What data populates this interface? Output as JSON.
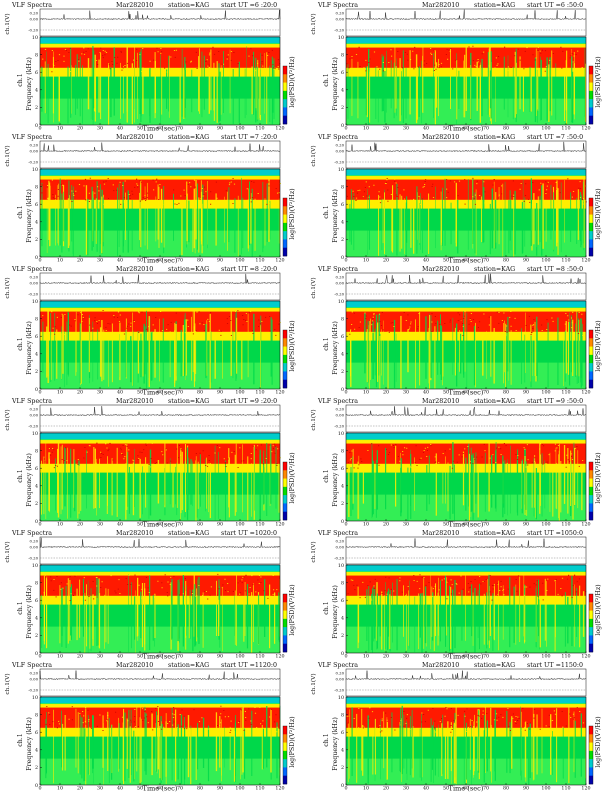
{
  "page": {
    "background": "#ffffff"
  },
  "chart_data": [
    {
      "type": "heatmap",
      "panel": "r1c1",
      "header": {
        "left": "VLF Spectra",
        "date": "Mar282010",
        "station": "station=KAG",
        "start": "start  UT =6 :20:0"
      }
    },
    {
      "type": "heatmap",
      "panel": "r1c2",
      "header": {
        "left": "VLF Spectra",
        "date": "Mar282010",
        "station": "station=KAG",
        "start": "start  UT =6 :50:0"
      }
    },
    {
      "type": "heatmap",
      "panel": "r2c1",
      "header": {
        "left": "VLF Spectra",
        "date": "Mar282010",
        "station": "station=KAG",
        "start": "start  UT =7 :20:0"
      }
    },
    {
      "type": "heatmap",
      "panel": "r2c2",
      "header": {
        "left": "VLF Spectra",
        "date": "Mar282010",
        "station": "station=KAG",
        "start": "start  UT =7 :50:0"
      }
    },
    {
      "type": "heatmap",
      "panel": "r3c1",
      "header": {
        "left": "VLF Spectra",
        "date": "Mar282010",
        "station": "station=KAG",
        "start": "start  UT =8 :20:0"
      }
    },
    {
      "type": "heatmap",
      "panel": "r3c2",
      "header": {
        "left": "VLF Spectra",
        "date": "Mar282010",
        "station": "station=KAG",
        "start": "start  UT =8 :50:0"
      }
    },
    {
      "type": "heatmap",
      "panel": "r4c1",
      "header": {
        "left": "VLF Spectra",
        "date": "Mar282010",
        "station": "station=KAG",
        "start": "start  UT =9 :20:0"
      }
    },
    {
      "type": "heatmap",
      "panel": "r4c2",
      "header": {
        "left": "VLF Spectra",
        "date": "Mar282010",
        "station": "station=KAG",
        "start": "start  UT =9 :50:0"
      }
    },
    {
      "type": "heatmap",
      "panel": "r5c1",
      "header": {
        "left": "VLF Spectra",
        "date": "Mar282010",
        "station": "station=KAG",
        "start": "start  UT =1020:0"
      }
    },
    {
      "type": "heatmap",
      "panel": "r5c2",
      "header": {
        "left": "VLF Spectra",
        "date": "Mar282010",
        "station": "station=KAG",
        "start": "start  UT =1050:0"
      }
    },
    {
      "type": "heatmap",
      "panel": "r6c1",
      "header": {
        "left": "VLF Spectra",
        "date": "Mar282010",
        "station": "station=KAG",
        "start": "start  UT =1120:0"
      }
    },
    {
      "type": "heatmap",
      "panel": "r6c2",
      "header": {
        "left": "VLF Spectra",
        "date": "Mar282010",
        "station": "station=KAG",
        "start": "start  UT =1150:0"
      }
    }
  ],
  "axes": {
    "waveform_ylabel": "ch.1(V)",
    "waveform_ticks": [
      "0.20",
      "0.00",
      "-0.20"
    ],
    "channel_label": "ch.1",
    "ylabel": "Frequency (kHz)",
    "yticks": [
      "10",
      "8",
      "6",
      "4",
      "2",
      "0"
    ],
    "ylim": [
      0,
      10
    ],
    "xlabel": "Time  (sec)",
    "xticks": [
      "0",
      "10",
      "20",
      "30",
      "40",
      "50",
      "60",
      "70",
      "80",
      "90",
      "100",
      "110",
      "120"
    ],
    "xlim": [
      0,
      120
    ],
    "colorbar_label": "log(PSD)(V²/Hz)",
    "colorbar_colors": [
      "#ff0000",
      "#ff8800",
      "#ffff00",
      "#00dd00",
      "#00cccc",
      "#0066ff",
      "#0000aa"
    ]
  },
  "colors": {
    "band_top": "#00cccc",
    "band_dense": "#ff1a00",
    "band_mid": "#ffee00",
    "band_low": "#00d84a",
    "band_floor": "#33ee55"
  }
}
